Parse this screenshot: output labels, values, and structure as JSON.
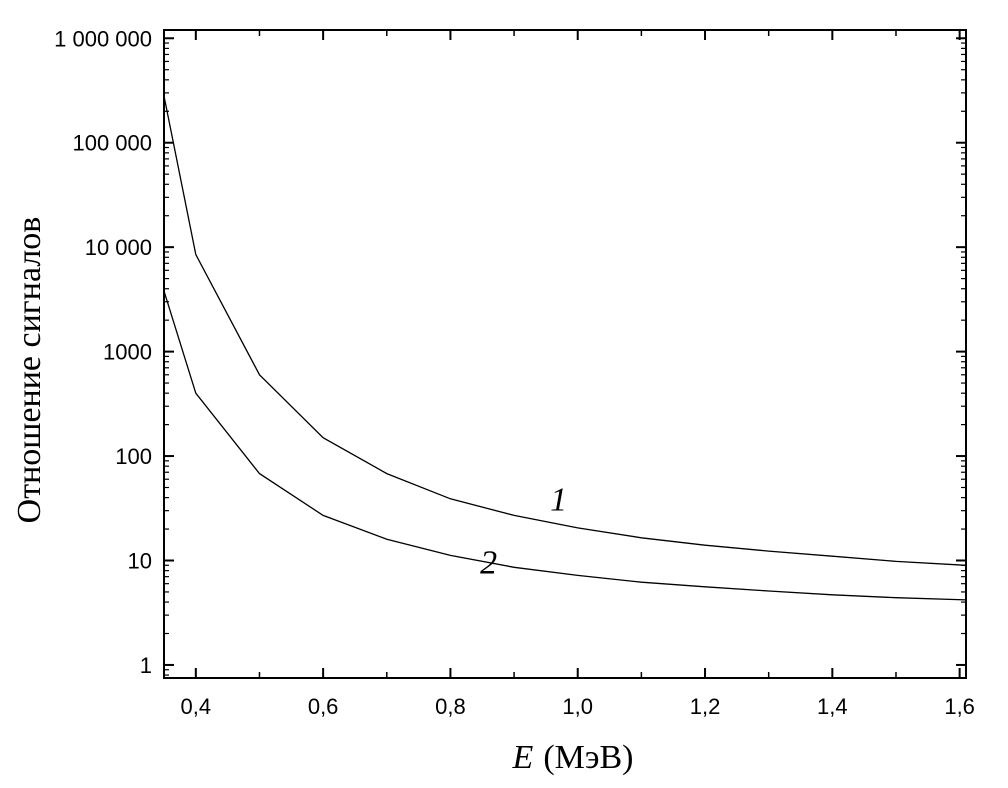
{
  "chart_data": {
    "type": "line",
    "xlabel_var": "E",
    "xlabel_unit": "(МэВ)",
    "ylabel": "Отношение сигналов",
    "xlim": [
      0.35,
      1.61
    ],
    "ylim": [
      0.75,
      1200000
    ],
    "y_scale": "log",
    "grid": false,
    "x_ticks": [
      {
        "value": 0.4,
        "label": "0,4"
      },
      {
        "value": 0.6,
        "label": "0,6"
      },
      {
        "value": 0.8,
        "label": "0,8"
      },
      {
        "value": 1.0,
        "label": "1,0"
      },
      {
        "value": 1.2,
        "label": "1,2"
      },
      {
        "value": 1.4,
        "label": "1,4"
      },
      {
        "value": 1.6,
        "label": "1,6"
      }
    ],
    "y_ticks": [
      {
        "value": 1,
        "label": "1"
      },
      {
        "value": 10,
        "label": "10"
      },
      {
        "value": 100,
        "label": "100"
      },
      {
        "value": 1000,
        "label": "1000"
      },
      {
        "value": 10000,
        "label": "10 000"
      },
      {
        "value": 100000,
        "label": "100 000"
      },
      {
        "value": 1000000,
        "label": "1 000 000"
      }
    ],
    "series": [
      {
        "name": "1",
        "label_at": [
          0.97,
          30
        ],
        "x": [
          0.35,
          0.4,
          0.5,
          0.6,
          0.7,
          0.8,
          0.9,
          1.0,
          1.1,
          1.2,
          1.3,
          1.4,
          1.5,
          1.61
        ],
        "y": [
          280000,
          8500,
          600,
          150,
          68,
          39,
          27,
          20.5,
          16.5,
          14,
          12.3,
          11,
          9.8,
          9
        ]
      },
      {
        "name": "2",
        "label_at": [
          0.86,
          7.5
        ],
        "x": [
          0.35,
          0.4,
          0.5,
          0.6,
          0.7,
          0.8,
          0.9,
          1.0,
          1.1,
          1.2,
          1.3,
          1.4,
          1.5,
          1.61
        ],
        "y": [
          3800,
          400,
          68,
          27,
          16,
          11.2,
          8.6,
          7.2,
          6.2,
          5.6,
          5.1,
          4.7,
          4.4,
          4.2
        ]
      }
    ]
  }
}
